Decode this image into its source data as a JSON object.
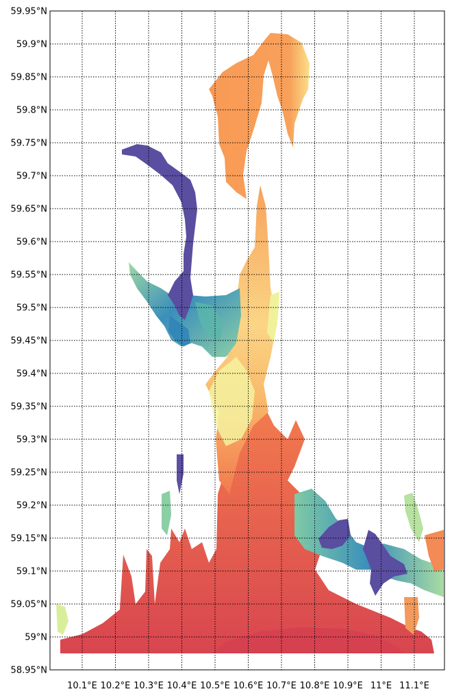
{
  "map": {
    "lat_ticks": [
      "59.95°N",
      "59.9°N",
      "59.85°N",
      "59.8°N",
      "59.75°N",
      "59.7°N",
      "59.65°N",
      "59.6°N",
      "59.55°N",
      "59.5°N",
      "59.45°N",
      "59.4°N",
      "59.35°N",
      "59.3°N",
      "59.25°N",
      "59.2°N",
      "59.15°N",
      "59.1°N",
      "59.05°N",
      "59°N",
      "58.95°N"
    ],
    "lon_ticks": [
      "10.1°E",
      "10.2°E",
      "10.3°E",
      "10.4°E",
      "10.5°E",
      "10.6°E",
      "10.7°E",
      "10.8°E",
      "10.9°E",
      "11°E",
      "11.1°E"
    ],
    "colormap": {
      "low": "#5e4fa2",
      "mid_low": "#3288bd",
      "mid": "#66c2a5",
      "mid_high": "#e6f598",
      "light": "#fee08b",
      "orange": "#f99855",
      "high": "#d53e4f"
    }
  }
}
